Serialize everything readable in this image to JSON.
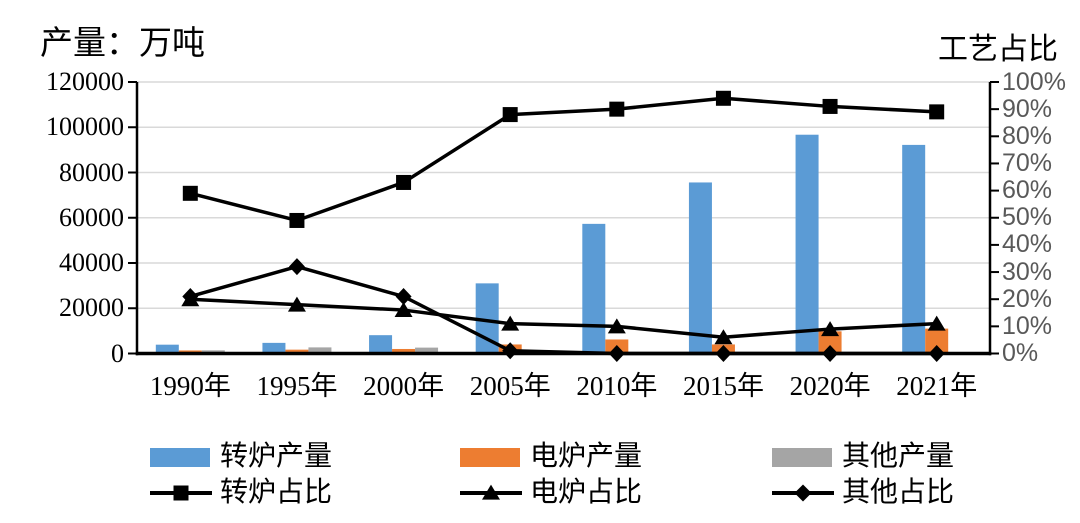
{
  "titles": {
    "left_axis_title": "产量：万吨",
    "right_axis_title": "工艺占比"
  },
  "colors": {
    "converter_bar": "#5B9BD5",
    "eaf_bar": "#ED7D31",
    "other_bar": "#A5A5A5",
    "line": "#000000",
    "gridline": "#D9D9D9",
    "axis": "#000000",
    "left_tick_label": "#000000",
    "right_tick_label": "#595959",
    "background": "#FFFFFF"
  },
  "legend": {
    "position": "bottom",
    "items": [
      {
        "label": "转炉产量",
        "swatch": "bar",
        "color": "#5B9BD5"
      },
      {
        "label": "电炉产量",
        "swatch": "bar",
        "color": "#ED7D31"
      },
      {
        "label": "其他产量",
        "swatch": "bar",
        "color": "#A5A5A5"
      },
      {
        "label": "转炉占比",
        "swatch": "line",
        "marker": "square"
      },
      {
        "label": "电炉占比",
        "swatch": "line",
        "marker": "triangle"
      },
      {
        "label": "其他占比",
        "swatch": "line",
        "marker": "diamond"
      }
    ]
  },
  "chart_data": {
    "type": "bar",
    "subtype": "combo-bar-line-dual-axis",
    "categories": [
      "1990年",
      "1995年",
      "2000年",
      "2005年",
      "2010年",
      "2015年",
      "2020年",
      "2021年"
    ],
    "bar_series": [
      {
        "key": "converter",
        "name": "转炉产量",
        "axis": "left",
        "color": "#5B9BD5",
        "values": [
          3900,
          4700,
          8100,
          31000,
          57300,
          75600,
          96700,
          92200
        ]
      },
      {
        "key": "eaf",
        "name": "电炉产量",
        "axis": "left",
        "color": "#ED7D31",
        "values": [
          1350,
          1700,
          2000,
          4000,
          6200,
          4000,
          9800,
          11000
        ]
      },
      {
        "key": "other",
        "name": "其他产量",
        "axis": "left",
        "color": "#A5A5A5",
        "values": [
          1400,
          2700,
          2600,
          250,
          0,
          0,
          0,
          0
        ]
      }
    ],
    "line_series": [
      {
        "key": "converter-share",
        "name": "转炉占比",
        "axis": "right",
        "marker": "square",
        "color": "#000000",
        "values": [
          59,
          49,
          63,
          88,
          90,
          94,
          91,
          89
        ]
      },
      {
        "key": "eaf-share",
        "name": "电炉占比",
        "axis": "right",
        "marker": "triangle",
        "color": "#000000",
        "values": [
          20,
          18,
          16,
          11,
          10,
          6,
          9,
          11
        ]
      },
      {
        "key": "other-share",
        "name": "其他占比",
        "axis": "right",
        "marker": "diamond",
        "color": "#000000",
        "values": [
          21,
          32,
          21,
          1,
          0,
          0,
          0,
          0
        ]
      }
    ],
    "left_axis": {
      "title": "产量：万吨",
      "min": 0,
      "max": 120000,
      "step": 20000,
      "tick_labels": [
        "0",
        "20000",
        "40000",
        "60000",
        "80000",
        "100000",
        "120000"
      ]
    },
    "right_axis": {
      "title": "工艺占比",
      "min": 0,
      "max": 100,
      "step": 10,
      "unit": "%",
      "tick_labels": [
        "0%",
        "10%",
        "20%",
        "30%",
        "40%",
        "50%",
        "60%",
        "70%",
        "80%",
        "90%",
        "100%"
      ]
    },
    "grid": "horizontal gridlines every 20000 (left axis)",
    "legend_position": "bottom"
  }
}
